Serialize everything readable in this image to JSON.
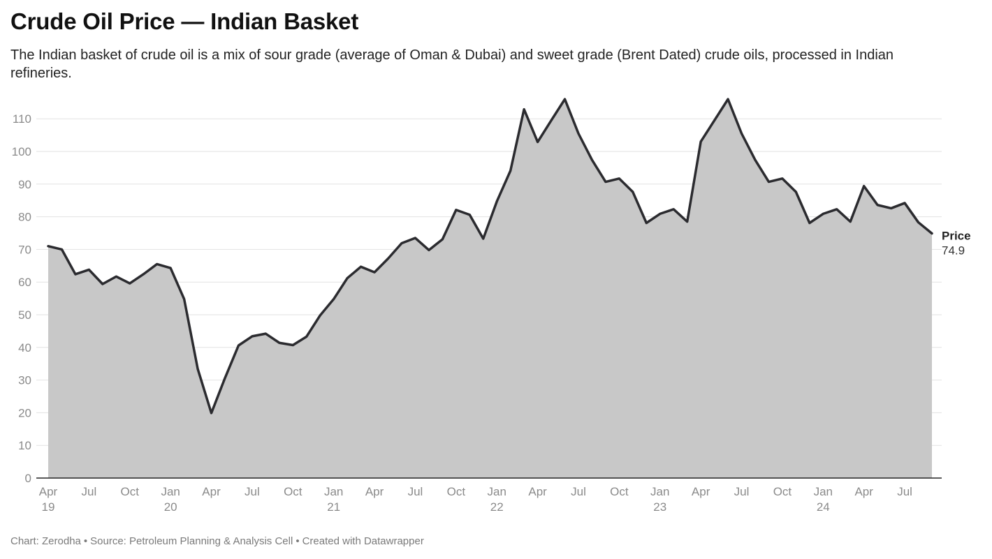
{
  "title": "Crude Oil Price — Indian Basket",
  "subtitle": "The Indian basket of crude oil is a mix of sour grade (average of Oman & Dubai) and sweet grade (Brent Dated) crude oils, processed in Indian refineries.",
  "footer": {
    "chart_credit": "Chart: Zerodha",
    "source": "Source: Petroleum Planning & Analysis Cell",
    "created_with": "Created with Datawrapper"
  },
  "colors": {
    "line": "#2b2b2f",
    "area": "#c8c8c8",
    "grid": "#e2e2e2",
    "axis": "#222222",
    "tick_text": "#8a8a8a"
  },
  "chart_data": {
    "type": "area",
    "y_ticks": [
      0,
      10,
      20,
      30,
      40,
      50,
      60,
      70,
      80,
      90,
      100,
      110
    ],
    "ylim": [
      0,
      110
    ],
    "grid": true,
    "x_ticks": [
      {
        "date": "2019-04",
        "label": [
          "Apr",
          "19"
        ]
      },
      {
        "date": "2019-07",
        "label": [
          "Jul"
        ]
      },
      {
        "date": "2019-10",
        "label": [
          "Oct"
        ]
      },
      {
        "date": "2020-01",
        "label": [
          "Jan",
          "20"
        ]
      },
      {
        "date": "2020-04",
        "label": [
          "Apr"
        ]
      },
      {
        "date": "2020-07",
        "label": [
          "Jul"
        ]
      },
      {
        "date": "2020-10",
        "label": [
          "Oct"
        ]
      },
      {
        "date": "2021-01",
        "label": [
          "Jan",
          "21"
        ]
      },
      {
        "date": "2021-04",
        "label": [
          "Apr"
        ]
      },
      {
        "date": "2021-07",
        "label": [
          "Jul"
        ]
      },
      {
        "date": "2021-10",
        "label": [
          "Oct"
        ]
      },
      {
        "date": "2022-01",
        "label": [
          "Jan",
          "22"
        ]
      },
      {
        "date": "2022-04",
        "label": [
          "Apr"
        ]
      },
      {
        "date": "2022-07",
        "label": [
          "Jul"
        ]
      },
      {
        "date": "2022-10",
        "label": [
          "Oct"
        ]
      },
      {
        "date": "2023-01",
        "label": [
          "Jan",
          "23"
        ]
      },
      {
        "date": "2023-04",
        "label": [
          "Apr"
        ]
      },
      {
        "date": "2023-07",
        "label": [
          "Jul"
        ]
      },
      {
        "date": "2023-10",
        "label": [
          "Oct"
        ]
      },
      {
        "date": "2024-01",
        "label": [
          "Jan",
          "24"
        ]
      },
      {
        "date": "2024-04",
        "label": [
          "Apr"
        ]
      },
      {
        "date": "2024-07",
        "label": [
          "Jul"
        ]
      }
    ],
    "series": [
      {
        "name": "Price",
        "end_label": "74.9",
        "points": [
          [
            "2019-04",
            71.0
          ],
          [
            "2019-05",
            70.0
          ],
          [
            "2019-06",
            62.4
          ],
          [
            "2019-07",
            63.8
          ],
          [
            "2019-08",
            59.4
          ],
          [
            "2019-09",
            61.7
          ],
          [
            "2019-10",
            59.6
          ],
          [
            "2019-11",
            62.4
          ],
          [
            "2019-12",
            65.5
          ],
          [
            "2020-01",
            64.3
          ],
          [
            "2020-02",
            54.8
          ],
          [
            "2020-03",
            33.4
          ],
          [
            "2020-04",
            19.9
          ],
          [
            "2020-05",
            30.6
          ],
          [
            "2020-06",
            40.6
          ],
          [
            "2020-07",
            43.4
          ],
          [
            "2020-08",
            44.2
          ],
          [
            "2020-09",
            41.4
          ],
          [
            "2020-10",
            40.7
          ],
          [
            "2020-11",
            43.3
          ],
          [
            "2020-12",
            49.8
          ],
          [
            "2021-01",
            54.8
          ],
          [
            "2021-02",
            61.2
          ],
          [
            "2021-03",
            64.7
          ],
          [
            "2021-04",
            63.0
          ],
          [
            "2021-05",
            67.2
          ],
          [
            "2021-06",
            71.9
          ],
          [
            "2021-07",
            73.5
          ],
          [
            "2021-08",
            69.8
          ],
          [
            "2021-09",
            73.1
          ],
          [
            "2021-10",
            82.1
          ],
          [
            "2021-11",
            80.6
          ],
          [
            "2021-12",
            73.3
          ],
          [
            "2022-01",
            84.7
          ],
          [
            "2022-02",
            94.1
          ],
          [
            "2022-03",
            112.9
          ],
          [
            "2022-04",
            102.9
          ],
          [
            "2022-05",
            109.5
          ],
          [
            "2022-06",
            116.0
          ],
          [
            "2022-07",
            105.5
          ],
          [
            "2022-08",
            97.4
          ],
          [
            "2022-09",
            90.7
          ],
          [
            "2022-10",
            91.7
          ],
          [
            "2022-11",
            87.6
          ],
          [
            "2022-12",
            78.1
          ],
          [
            "2023-01",
            80.9
          ],
          [
            "2023-02",
            82.3
          ],
          [
            "2023-03",
            78.5
          ],
          [
            "2023-04",
            103.0
          ],
          [
            "2023-05",
            109.5
          ],
          [
            "2023-06",
            116.0
          ],
          [
            "2023-07",
            105.5
          ],
          [
            "2023-08",
            97.4
          ],
          [
            "2023-09",
            90.7
          ],
          [
            "2023-10",
            91.7
          ],
          [
            "2023-11",
            87.6
          ],
          [
            "2023-12",
            78.1
          ],
          [
            "2024-01",
            80.9
          ],
          [
            "2024-02",
            82.3
          ],
          [
            "2024-03",
            78.5
          ],
          [
            "2024-04",
            89.4
          ],
          [
            "2024-05",
            83.6
          ],
          [
            "2024-06",
            82.6
          ],
          [
            "2024-07",
            84.2
          ],
          [
            "2024-08",
            78.3
          ],
          [
            "2024-09",
            74.9
          ]
        ]
      }
    ]
  }
}
